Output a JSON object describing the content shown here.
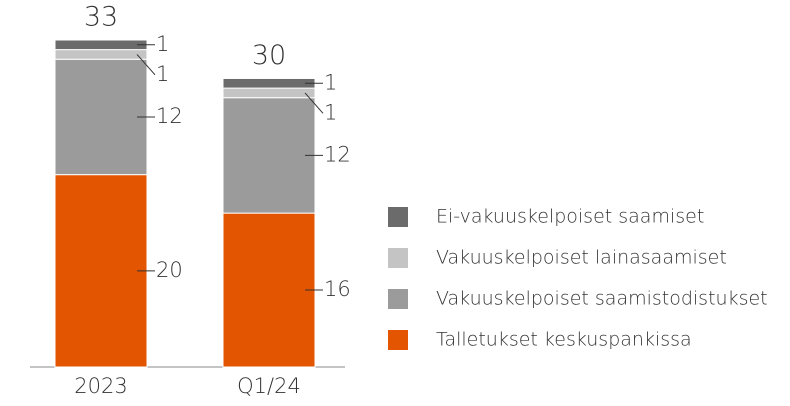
{
  "chart_data": {
    "type": "stacked_bar",
    "categories": [
      "2023",
      "Q1/24"
    ],
    "totals": [
      33,
      30
    ],
    "series": [
      {
        "name": "Talletukset keskuspankissa",
        "color": "#e35500",
        "values": [
          20,
          16
        ]
      },
      {
        "name": "Vakuuskelpoiset saamistodistukset",
        "color": "#9b9b9b",
        "values": [
          12,
          12
        ]
      },
      {
        "name": "Vakuuskelpoiset lainasaamiset",
        "color": "#c4c4c4",
        "values": [
          1,
          1
        ]
      },
      {
        "name": "Ei-vakuuskelpoiset saamiset",
        "color": "#6b6b6b",
        "values": [
          1,
          1
        ]
      }
    ]
  }
}
